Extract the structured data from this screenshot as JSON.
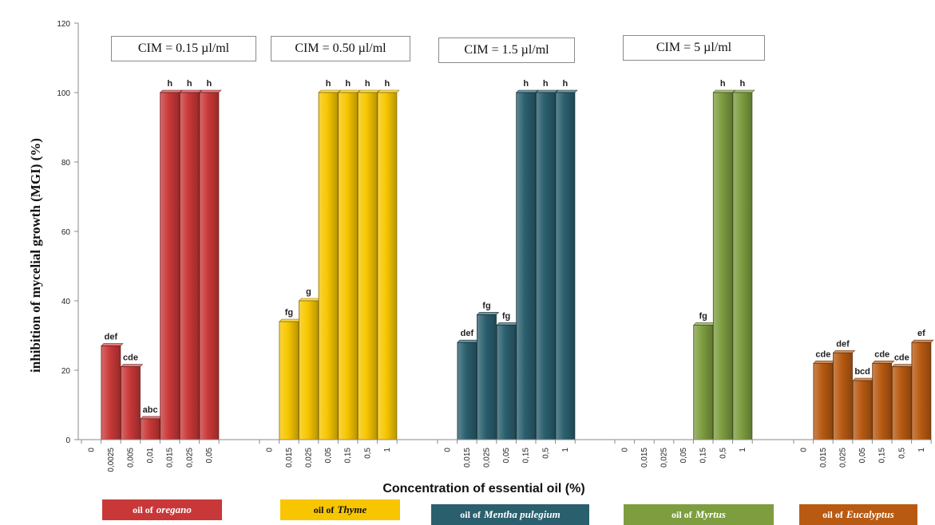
{
  "chart_data": {
    "type": "bar",
    "ylabel": "inhibition of mycelial growth (MGI) (%)",
    "xlabel": "Concentration of essential oil (%)",
    "ylim": [
      0,
      120
    ],
    "yticks": [
      "0",
      "20",
      "40",
      "60",
      "80",
      "100",
      "120"
    ],
    "groups": [
      {
        "name": "oil of oregano",
        "legend_prefix": "oil of",
        "legend_name": "oregano",
        "color": "#c93838",
        "cim": "CIM = 0.15 µl/ml",
        "categories": [
          "0",
          "0,0025",
          "0,005",
          "0,01",
          "0,015",
          "0,025",
          "0,05"
        ],
        "values": [
          0,
          27,
          21,
          6,
          100,
          100,
          100
        ],
        "labels": [
          "",
          "def",
          "cde",
          "abc",
          "h",
          "h",
          "h"
        ]
      },
      {
        "name": "oil of Thyme",
        "legend_prefix": "oil of",
        "legend_name": "Thyme",
        "color": "#f7c600",
        "cim": "CIM = 0.50 µl/ml",
        "categories": [
          "0",
          "0,015",
          "0,025",
          "0,05",
          "0,15",
          "0,5",
          "1"
        ],
        "values": [
          0,
          34,
          40,
          100,
          100,
          100,
          100
        ],
        "labels": [
          "",
          "fg",
          "g",
          "h",
          "h",
          "h",
          "h"
        ]
      },
      {
        "name": "oil of Mentha pulegium",
        "legend_prefix": "oil of",
        "legend_name": "Mentha pulegium",
        "color": "#2a5f6e",
        "cim": "CIM = 1.5 µl/ml",
        "categories": [
          "0",
          "0,015",
          "0,025",
          "0,05",
          "0,15",
          "0,5",
          "1"
        ],
        "values": [
          0,
          28,
          36,
          33,
          100,
          100,
          100
        ],
        "labels": [
          "",
          "def",
          "fg",
          "fg",
          "h",
          "h",
          "h"
        ]
      },
      {
        "name": "oil of Myrtus",
        "legend_prefix": "oil of",
        "legend_name": "Myrtus",
        "color": "#7d9d3f",
        "cim": "CIM = 5 µl/ml",
        "categories": [
          "0",
          "0,015",
          "0,025",
          "0,05",
          "0,15",
          "0,5",
          "1"
        ],
        "values": [
          0,
          0,
          0,
          0,
          33,
          100,
          100
        ],
        "labels": [
          "",
          "",
          "",
          "",
          "fg",
          "h",
          "h"
        ]
      },
      {
        "name": "oil of Eucalyptus",
        "legend_prefix": "oil of",
        "legend_name": "Eucalyptus",
        "color": "#b85a12",
        "cim": "",
        "categories": [
          "0",
          "0,015",
          "0,025",
          "0,05",
          "0,15",
          "0,5",
          "1"
        ],
        "values": [
          0,
          22,
          25,
          17,
          22,
          21,
          28
        ],
        "labels": [
          "",
          "cde",
          "def",
          "bcd",
          "cde",
          "cde",
          "ef"
        ]
      }
    ]
  }
}
